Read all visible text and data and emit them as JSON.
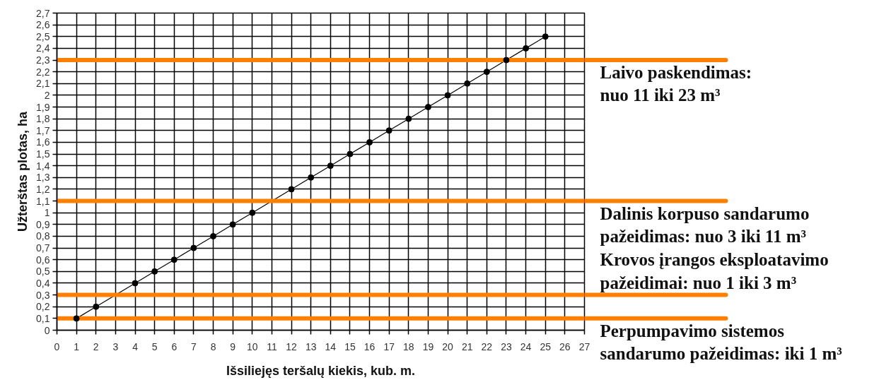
{
  "chart_data": {
    "type": "line",
    "xlabel": "Išsiliejęs teršalų kiekis, kub. m.",
    "ylabel": "Užterštas plotas, ha",
    "x": [
      1,
      2,
      4,
      5,
      6,
      7,
      8,
      9,
      10,
      12,
      13,
      14,
      15,
      16,
      17,
      18,
      19,
      20,
      21,
      22,
      23,
      24,
      25
    ],
    "series": [
      {
        "color": "#000000",
        "values": [
          0.1,
          0.2,
          0.4,
          0.5,
          0.6,
          0.7,
          0.8,
          0.9,
          1.0,
          1.2,
          1.3,
          1.4,
          1.5,
          1.6,
          1.7,
          1.8,
          1.9,
          2.0,
          2.1,
          2.2,
          2.3,
          2.4,
          2.5
        ]
      }
    ],
    "marker": "circle",
    "line_style": "solid",
    "grid": true,
    "xlim": [
      0,
      27
    ],
    "xticks": [
      0,
      1,
      2,
      3,
      4,
      5,
      6,
      7,
      8,
      9,
      10,
      11,
      12,
      13,
      14,
      15,
      16,
      17,
      18,
      19,
      20,
      21,
      22,
      23,
      24,
      25,
      26,
      27
    ],
    "ylim": [
      0,
      2.7
    ],
    "yticks": [
      0,
      {
        "value": 0.1,
        "label": "0,1"
      },
      {
        "value": 0.2,
        "label": "0,2"
      },
      {
        "value": 0.3,
        "label": "0,3"
      },
      {
        "value": 0.4,
        "label": "0,4"
      },
      {
        "value": 0.5,
        "label": "0,5"
      },
      {
        "value": 0.6,
        "label": "0,6"
      },
      {
        "value": 0.7,
        "label": "0,7"
      },
      {
        "value": 0.8,
        "label": "0,8"
      },
      {
        "value": 0.9,
        "label": "0,9"
      },
      1,
      {
        "value": 1.1,
        "label": "1,1"
      },
      {
        "value": 1.2,
        "label": "1,2"
      },
      {
        "value": 1.3,
        "label": "1,3"
      },
      {
        "value": 1.4,
        "label": "1,4"
      },
      {
        "value": 1.5,
        "label": "1,5"
      },
      {
        "value": 1.6,
        "label": "1,6"
      },
      {
        "value": 1.7,
        "label": "1,7"
      },
      {
        "value": 1.8,
        "label": "1,8"
      },
      {
        "value": 1.9,
        "label": "1,9"
      },
      2,
      {
        "value": 2.1,
        "label": "2,1"
      },
      {
        "value": 2.2,
        "label": "2,2"
      },
      {
        "value": 2.3,
        "label": "2,3"
      },
      {
        "value": 2.4,
        "label": "2,4"
      },
      {
        "value": 2.5,
        "label": "2,5"
      },
      {
        "value": 2.6,
        "label": "2,6"
      },
      {
        "value": 2.7,
        "label": "2,7"
      }
    ],
    "ref_lines": [
      {
        "axis": "y",
        "value": 2.3,
        "label": "Laivo paskendimas:\nnuo 11 iki 23 m³",
        "color": "#ff8000"
      },
      {
        "axis": "y",
        "value": 1.1,
        "label": "Dalinis korpuso sandarumo\npažeidimas: nuo 3 iki 11 m³",
        "color": "#ff8000"
      },
      {
        "axis": "y",
        "value": 0.3,
        "label": "Krovos įrangos eksploatavimo\npažeidimai: nuo 1 iki 3 m³",
        "color": "#ff8000"
      },
      {
        "axis": "y",
        "value": 0.1,
        "label": "Perpumpavimo sistemos\nsandarumo pažeidimas: iki 1 m³",
        "color": "#ff8000"
      }
    ]
  }
}
